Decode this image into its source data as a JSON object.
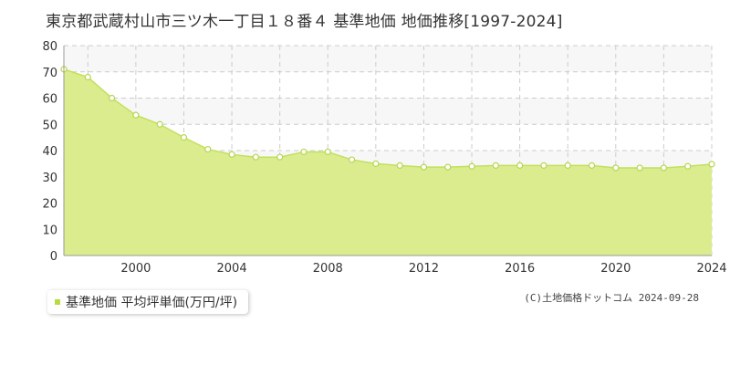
{
  "colors": {
    "fill": "#dbec8f",
    "line": "#c2e05c",
    "point_fill": "#ffffff",
    "point_stroke": "#b5d64e",
    "band": "#f7f7f7",
    "grid": "#cccccc",
    "axis_text": "#333333",
    "legend_marker": "#b8dc3c"
  },
  "chart_data": {
    "type": "area",
    "title": "東京都武蔵村山市三ツ木一丁目１８番４ 基準地価 地価推移[1997-2024]",
    "xlabel": "",
    "ylabel": "",
    "xlim": [
      1997,
      2024
    ],
    "ylim": [
      0,
      80
    ],
    "x_ticks": [
      2000,
      2004,
      2008,
      2012,
      2016,
      2020,
      2024
    ],
    "y_ticks": [
      0,
      10,
      20,
      30,
      40,
      50,
      60,
      70,
      80
    ],
    "grid": true,
    "legend_position": "bottom-left",
    "series": [
      {
        "name": "基準地価 平均坪単価(万円/坪)",
        "x": [
          1997,
          1998,
          1999,
          2000,
          2001,
          2002,
          2003,
          2004,
          2005,
          2006,
          2007,
          2008,
          2009,
          2010,
          2011,
          2012,
          2013,
          2014,
          2015,
          2016,
          2017,
          2018,
          2019,
          2020,
          2021,
          2022,
          2023,
          2024
        ],
        "values": [
          71.0,
          68.0,
          60.0,
          53.5,
          50.0,
          45.0,
          40.5,
          38.5,
          37.5,
          37.5,
          39.5,
          39.5,
          36.5,
          35.0,
          34.3,
          33.7,
          33.7,
          34.0,
          34.3,
          34.3,
          34.3,
          34.3,
          34.3,
          33.4,
          33.4,
          33.4,
          34.0,
          34.8
        ]
      }
    ]
  },
  "legend": {
    "label": "基準地価 平均坪単価(万円/坪)"
  },
  "copyright": "(C)土地価格ドットコム 2024-09-28"
}
